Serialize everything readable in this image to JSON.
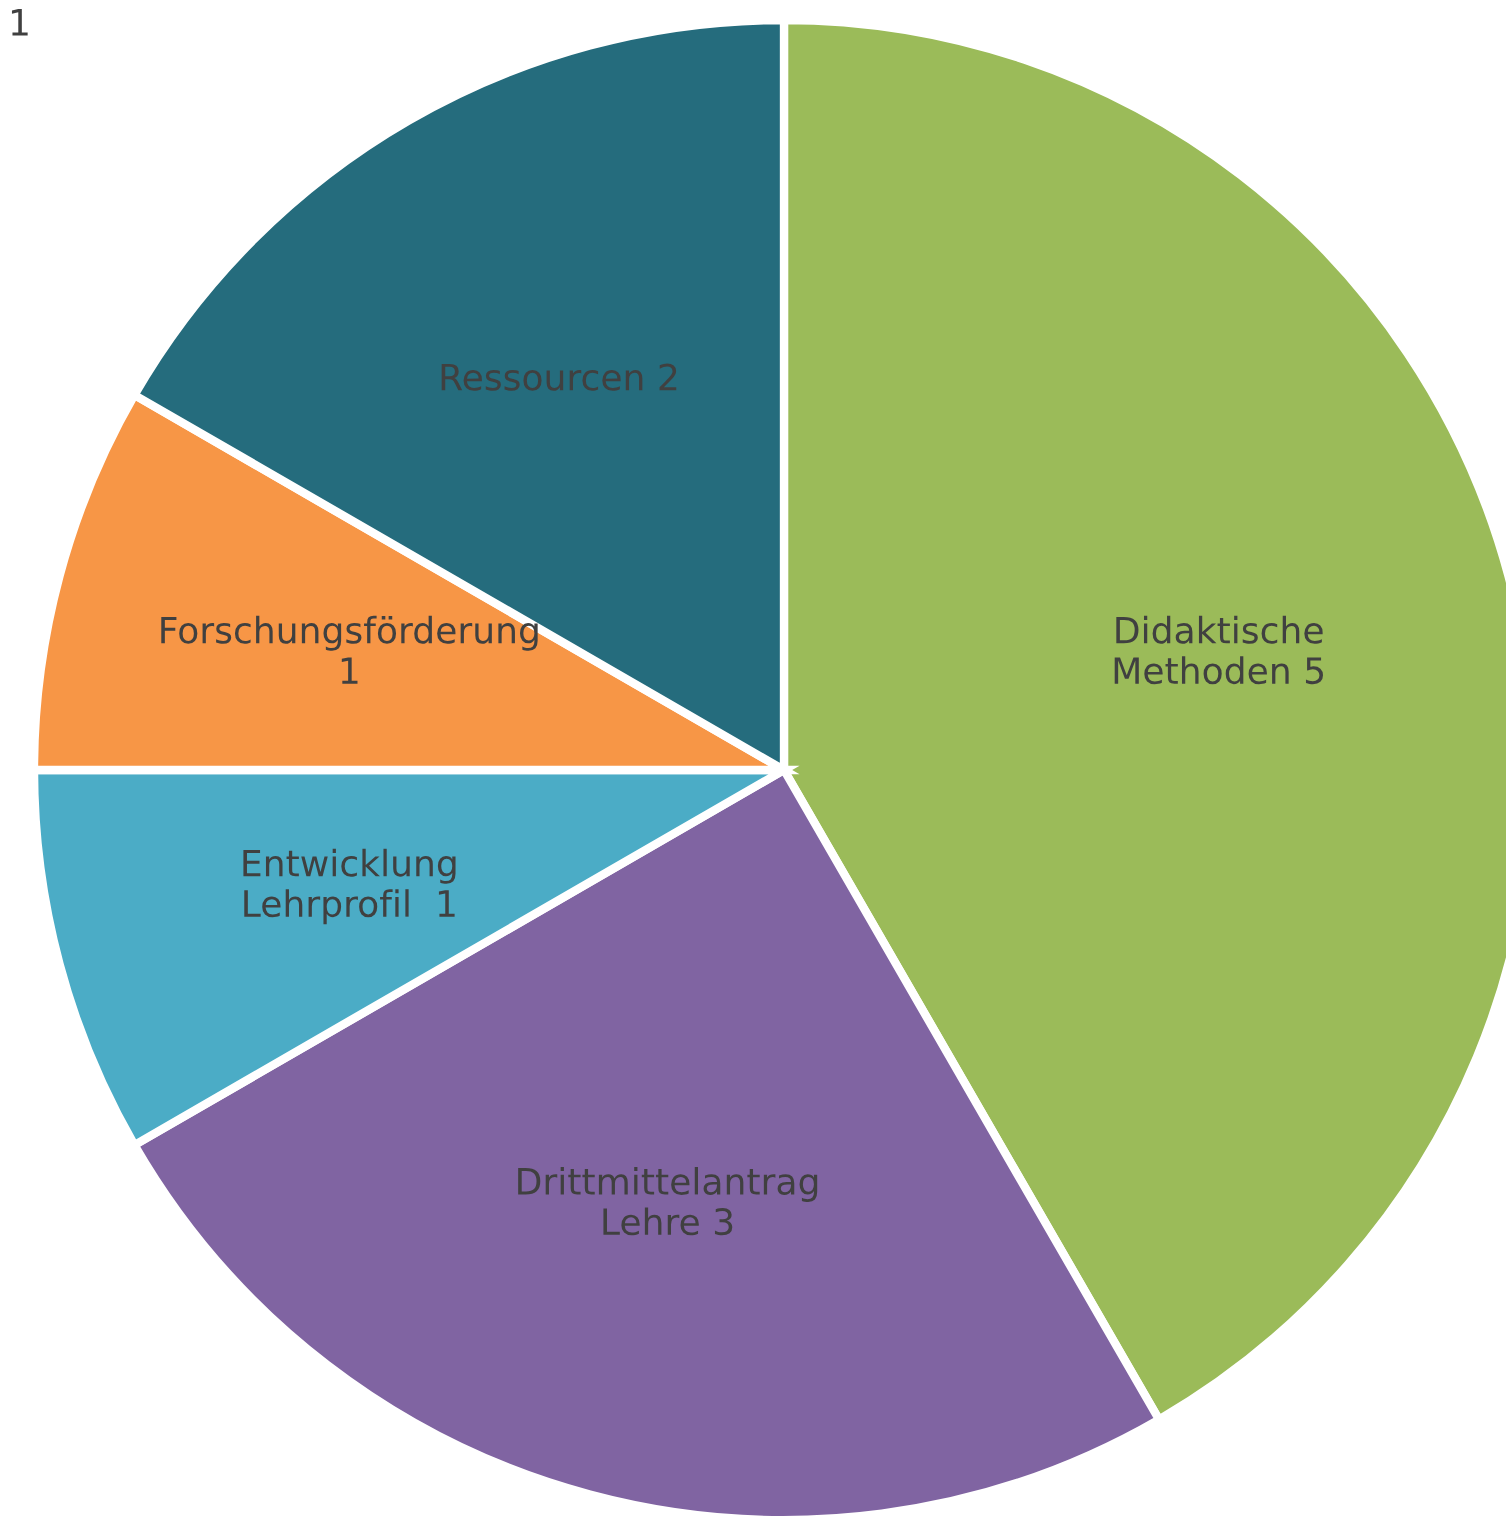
{
  "chart_data": {
    "type": "pie",
    "categories": [
      "Didaktische\nMethoden 5",
      "Drittmittelantrag\nLehre 3",
      "Entwicklung\nLehrprofil  1",
      "Forschungsförderung\n1",
      "Ressourcen 2"
    ],
    "values": [
      5,
      3,
      1,
      1,
      2
    ],
    "colors": [
      "#9bbb59",
      "#8064a2",
      "#4bacc6",
      "#f79646",
      "#256c7d"
    ],
    "annotations": [
      "1"
    ],
    "legend": false
  }
}
